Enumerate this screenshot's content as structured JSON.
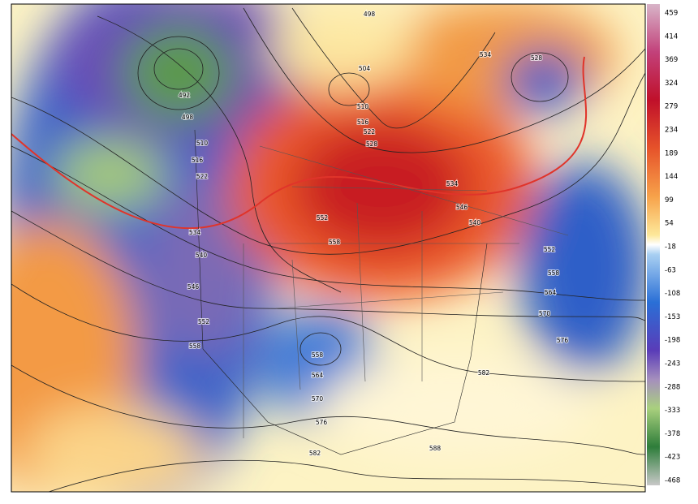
{
  "map": {
    "contour_labels": [
      498,
      534,
      528,
      504,
      510,
      516,
      522,
      528,
      492,
      498,
      510,
      516,
      522,
      534,
      540,
      546,
      552,
      558,
      534,
      546,
      540,
      552,
      558,
      552,
      558,
      564,
      570,
      576,
      558,
      564,
      570,
      576,
      582,
      588,
      582
    ],
    "colorbar": {
      "ticks": [
        459,
        414,
        369,
        324,
        279,
        234,
        189,
        144,
        99,
        54,
        -18,
        -63,
        -108,
        -153,
        -198,
        -243,
        -288,
        -333,
        -378,
        -423,
        -468
      ]
    }
  }
}
